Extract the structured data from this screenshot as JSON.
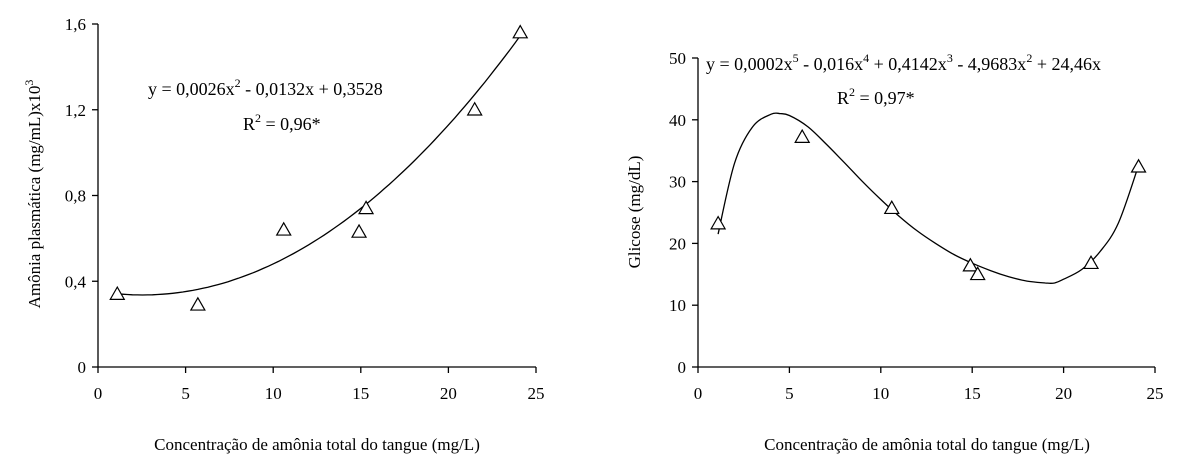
{
  "chart_data": [
    {
      "type": "scatter",
      "xlabel": "Concentração de amônia total do tangue (mg/L)",
      "ylabel": "Amônia plasmática (mg/mL)x10",
      "ylabel_superscript": "3",
      "xlim": [
        0,
        25
      ],
      "ylim": [
        0,
        1.6
      ],
      "xticks": [
        0,
        5,
        10,
        15,
        20,
        25
      ],
      "yticks": [
        0,
        0.4,
        0.8,
        1.2,
        1.6
      ],
      "xtick_labels": [
        "0",
        "5",
        "10",
        "15",
        "20",
        "25"
      ],
      "ytick_labels": [
        "0",
        "0,4",
        "0,8",
        "1,2",
        "1,6"
      ],
      "grid": false,
      "marker": "triangle",
      "points": [
        {
          "x": 1.1,
          "y": 0.34
        },
        {
          "x": 5.7,
          "y": 0.29
        },
        {
          "x": 10.6,
          "y": 0.64
        },
        {
          "x": 14.9,
          "y": 0.63
        },
        {
          "x": 15.3,
          "y": 0.74
        },
        {
          "x": 21.5,
          "y": 1.2
        },
        {
          "x": 24.1,
          "y": 1.56
        }
      ],
      "fit": {
        "type": "polynomial",
        "coefficients": [
          0.3528,
          -0.0132,
          0.0026
        ],
        "x_range": [
          1.1,
          24.1
        ]
      },
      "equation": {
        "segments": [
          {
            "text": "y = 0,0026x"
          },
          {
            "text": "2",
            "sup": true
          },
          {
            "text": " - 0,0132x + 0,3528"
          }
        ],
        "r2_segments": [
          {
            "text": "R"
          },
          {
            "text": "2",
            "sup": true
          },
          {
            "text": " = 0,96*"
          }
        ]
      }
    },
    {
      "type": "scatter",
      "xlabel": "Concentração de amônia total do tangue (mg/L)",
      "ylabel": "Glicose (mg/dL)",
      "xlim": [
        0,
        25
      ],
      "ylim": [
        0,
        50
      ],
      "xticks": [
        0,
        5,
        10,
        15,
        20,
        25
      ],
      "yticks": [
        0,
        10,
        20,
        30,
        40,
        50
      ],
      "xtick_labels": [
        "0",
        "5",
        "10",
        "15",
        "20",
        "25"
      ],
      "ytick_labels": [
        "0",
        "10",
        "20",
        "30",
        "40",
        "50"
      ],
      "grid": false,
      "marker": "triangle",
      "points": [
        {
          "x": 1.1,
          "y": 23.2
        },
        {
          "x": 5.7,
          "y": 37.2
        },
        {
          "x": 10.6,
          "y": 25.7
        },
        {
          "x": 14.9,
          "y": 16.4
        },
        {
          "x": 15.3,
          "y": 15.0
        },
        {
          "x": 21.5,
          "y": 16.8
        },
        {
          "x": 24.1,
          "y": 32.4
        }
      ],
      "fit": {
        "type": "smooth",
        "x": [
          1.1,
          2,
          3,
          4,
          4.5,
          5,
          6,
          7,
          8,
          9,
          10,
          11,
          12,
          13,
          14,
          15,
          16,
          17,
          18,
          19,
          19.5,
          20,
          21,
          22,
          23,
          24.1
        ],
        "y": [
          21.5,
          33.0,
          38.9,
          40.9,
          41.0,
          40.7,
          38.9,
          36.1,
          33.1,
          30.0,
          27.1,
          24.4,
          22.0,
          20.0,
          18.2,
          16.8,
          15.6,
          14.6,
          13.9,
          13.6,
          13.6,
          14.2,
          15.8,
          18.7,
          23.3,
          32.6
        ]
      },
      "equation": {
        "segments": [
          {
            "text": "y = 0,0002x"
          },
          {
            "text": "5",
            "sup": true
          },
          {
            "text": " - 0,016x"
          },
          {
            "text": "4",
            "sup": true
          },
          {
            "text": " + 0,4142x"
          },
          {
            "text": "3",
            "sup": true
          },
          {
            "text": " - 4,9683x"
          },
          {
            "text": "2",
            "sup": true
          },
          {
            "text": " + 24,46x"
          }
        ],
        "r2_segments": [
          {
            "text": "R"
          },
          {
            "text": "2",
            "sup": true
          },
          {
            "text": " = 0,97*"
          }
        ]
      }
    }
  ]
}
